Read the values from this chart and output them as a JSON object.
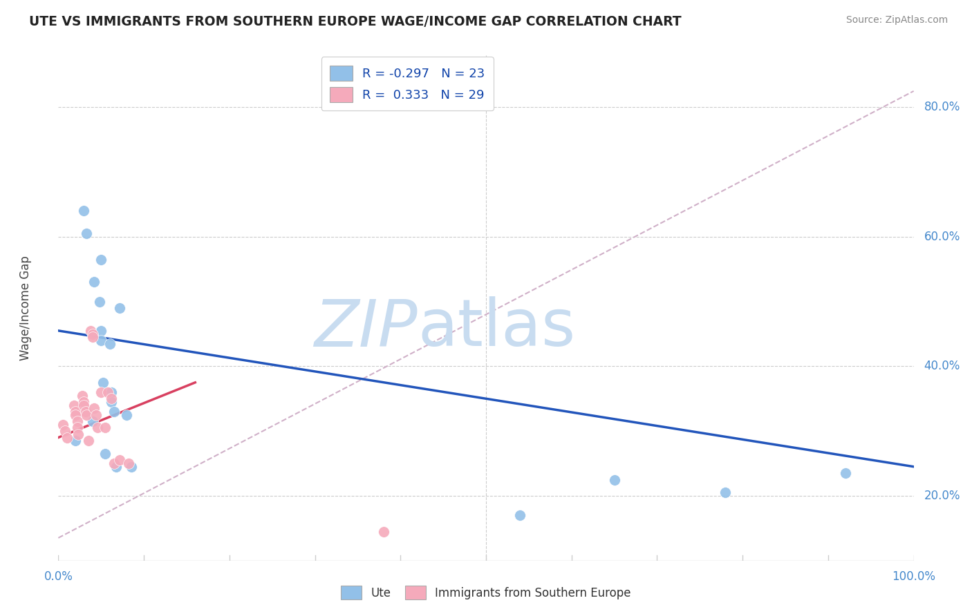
{
  "title": "UTE VS IMMIGRANTS FROM SOUTHERN EUROPE WAGE/INCOME GAP CORRELATION CHART",
  "source": "Source: ZipAtlas.com",
  "ylabel": "Wage/Income Gap",
  "watermark_line1": "ZIP",
  "watermark_line2": "atlas",
  "legend": {
    "blue_R": "-0.297",
    "blue_N": "23",
    "pink_R": "0.333",
    "pink_N": "29"
  },
  "blue_scatter_x": [
    0.02,
    0.03,
    0.033,
    0.05,
    0.04,
    0.042,
    0.048,
    0.05,
    0.05,
    0.052,
    0.055,
    0.06,
    0.062,
    0.062,
    0.065,
    0.068,
    0.072,
    0.08,
    0.085,
    0.54,
    0.65,
    0.78,
    0.92
  ],
  "blue_scatter_y": [
    0.285,
    0.64,
    0.605,
    0.565,
    0.315,
    0.53,
    0.5,
    0.455,
    0.44,
    0.375,
    0.265,
    0.435,
    0.36,
    0.345,
    0.33,
    0.245,
    0.49,
    0.325,
    0.245,
    0.17,
    0.225,
    0.205,
    0.235
  ],
  "pink_scatter_x": [
    0.005,
    0.008,
    0.01,
    0.018,
    0.02,
    0.02,
    0.022,
    0.022,
    0.023,
    0.028,
    0.03,
    0.03,
    0.032,
    0.033,
    0.035,
    0.038,
    0.04,
    0.04,
    0.042,
    0.044,
    0.046,
    0.05,
    0.055,
    0.058,
    0.062,
    0.065,
    0.072,
    0.082,
    0.38
  ],
  "pink_scatter_y": [
    0.31,
    0.3,
    0.29,
    0.34,
    0.33,
    0.325,
    0.315,
    0.305,
    0.295,
    0.355,
    0.345,
    0.34,
    0.33,
    0.325,
    0.285,
    0.455,
    0.45,
    0.445,
    0.335,
    0.325,
    0.305,
    0.36,
    0.305,
    0.36,
    0.35,
    0.25,
    0.255,
    0.25,
    0.145
  ],
  "blue_line_x": [
    0.0,
    1.0
  ],
  "blue_line_y": [
    0.455,
    0.245
  ],
  "pink_line_x": [
    0.0,
    0.16
  ],
  "pink_line_y": [
    0.29,
    0.375
  ],
  "dashed_line_x": [
    0.0,
    1.0
  ],
  "dashed_line_y": [
    0.135,
    0.825
  ],
  "xlim": [
    0.0,
    1.0
  ],
  "ylim": [
    0.1,
    0.88
  ],
  "yticks": [
    0.2,
    0.4,
    0.6,
    0.8
  ],
  "ytick_labels": [
    "20.0%",
    "40.0%",
    "60.0%",
    "80.0%"
  ],
  "xtick_positions": [
    0.0,
    0.1,
    0.2,
    0.3,
    0.4,
    0.5,
    0.6,
    0.7,
    0.8,
    0.9,
    1.0
  ],
  "blue_scatter_color": "#92C0E8",
  "pink_scatter_color": "#F5AABB",
  "blue_line_color": "#2255BB",
  "pink_line_color": "#D84060",
  "dashed_line_color": "#D0B0C8",
  "grid_color": "#CCCCCC",
  "title_color": "#222222",
  "axis_tick_color": "#4488CC",
  "source_color": "#888888",
  "watermark_color": "#C8DCF0",
  "ylabel_color": "#444444",
  "bottom_legend_color": "#333333",
  "background_color": "#FFFFFF",
  "legend_text_color": "#1144AA"
}
